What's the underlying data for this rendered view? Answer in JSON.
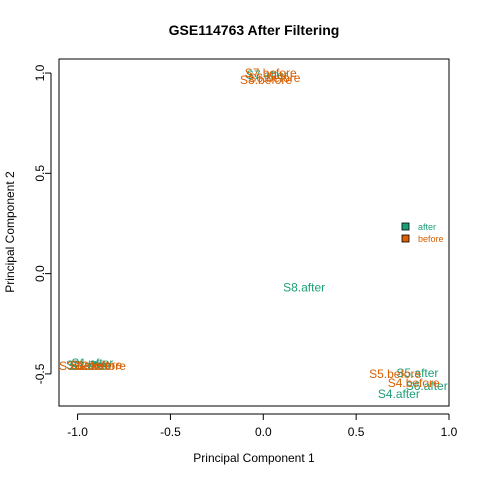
{
  "chart_data": {
    "type": "scatter",
    "title": "GSE114763 After Filtering",
    "xlabel": "Principal Component 1",
    "ylabel": "Principal Component 2",
    "xlim": [
      -1.1,
      1.0
    ],
    "ylim": [
      -0.66,
      1.07
    ],
    "x_ticks": [
      -1.0,
      -0.5,
      0.0,
      0.5,
      1.0
    ],
    "x_tick_labels": [
      "-1.0",
      "-0.5",
      "0.0",
      "0.5",
      "1.0"
    ],
    "y_ticks": [
      -0.5,
      0.0,
      0.5,
      1.0
    ],
    "y_tick_labels": [
      "-0.5",
      "0.0",
      "0.5",
      "1.0"
    ],
    "grid": false,
    "legend_position": "right",
    "series": [
      {
        "name": "after",
        "color": "#1b9e77",
        "points": [
          {
            "label": "S1.after",
            "x": -0.92,
            "y": -0.445
          },
          {
            "label": "S2.after",
            "x": -0.95,
            "y": -0.455
          },
          {
            "label": "S3.after",
            "x": -0.93,
            "y": -0.46
          },
          {
            "label": "S4.after",
            "x": 0.73,
            "y": -0.6
          },
          {
            "label": "S5.after",
            "x": 0.83,
            "y": -0.495
          },
          {
            "label": "S6.after",
            "x": 0.88,
            "y": -0.56
          },
          {
            "label": "S7.after",
            "x": 0.02,
            "y": 0.99
          },
          {
            "label": "S8.after",
            "x": 0.22,
            "y": -0.07
          }
        ]
      },
      {
        "name": "before",
        "color": "#d95f02",
        "points": [
          {
            "label": "S1.before",
            "x": -0.9,
            "y": -0.455
          },
          {
            "label": "S2.before",
            "x": -0.88,
            "y": -0.46
          },
          {
            "label": "S3.before",
            "x": -0.96,
            "y": -0.46
          },
          {
            "label": "S4.before",
            "x": 0.81,
            "y": -0.545
          },
          {
            "label": "S5.before",
            "x": 0.71,
            "y": -0.5
          },
          {
            "label": "S6.before",
            "x": 0.06,
            "y": 0.975
          },
          {
            "label": "S7.before",
            "x": 0.04,
            "y": 1.0
          },
          {
            "label": "S8.before",
            "x": 0.015,
            "y": 0.965
          }
        ]
      }
    ]
  }
}
